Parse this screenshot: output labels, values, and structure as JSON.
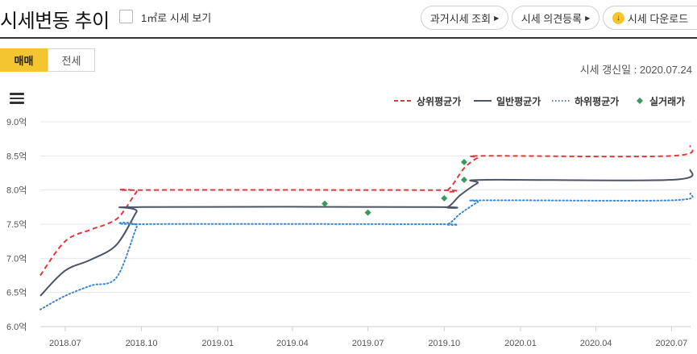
{
  "header": {
    "title": "시세변동 추이",
    "checkbox_label": "1㎡로 시세 보기",
    "btn_past": "과거시세 조회",
    "btn_opinion": "시세 의견등록",
    "btn_download": "시세 다운로드",
    "caret": "▶",
    "download_glyph": "↓",
    "download_icon_color": "#f5c531"
  },
  "tabs": {
    "sale": "매매",
    "jeonse": "전세",
    "active_color": "#f5c531"
  },
  "update_date": "시세 갱신일 : 2020.07.24",
  "chart_data": {
    "type": "line",
    "xlabel": "",
    "ylabel": "",
    "x_ticks": [
      "2018.07",
      "2018.10",
      "2019.01",
      "2019.04",
      "2019.07",
      "2019.10",
      "2020.01",
      "2020.04",
      "2020.07"
    ],
    "y_ticks": [
      "9.0억",
      "8.5억",
      "8.0억",
      "7.5억",
      "7.0억",
      "6.5억",
      "6.0억"
    ],
    "xlim": [
      "2018-06-01",
      "2020-07-24"
    ],
    "ylim": [
      6.0,
      9.0
    ],
    "y_unit": "억",
    "grid": true,
    "legend_position": "top-right",
    "series": [
      {
        "name": "상위평균가",
        "style": "dashed",
        "color": "#e03a3e",
        "points": [
          [
            "2018-06-01",
            6.75
          ],
          [
            "2018-07-01",
            7.25
          ],
          [
            "2018-08-01",
            7.42
          ],
          [
            "2018-08-20",
            7.5
          ],
          [
            "2018-09-05",
            7.62
          ],
          [
            "2018-09-25",
            7.97
          ],
          [
            "2018-10-01",
            8.0
          ],
          [
            "2019-09-15",
            8.0
          ],
          [
            "2019-10-05",
            8.0
          ],
          [
            "2019-10-25",
            8.32
          ],
          [
            "2019-11-10",
            8.47
          ],
          [
            "2019-11-20",
            8.5
          ],
          [
            "2020-07-01",
            8.5
          ],
          [
            "2020-07-24",
            8.65
          ]
        ]
      },
      {
        "name": "일반평균가",
        "style": "solid",
        "color": "#4c5566",
        "points": [
          [
            "2018-06-01",
            6.45
          ],
          [
            "2018-07-01",
            6.82
          ],
          [
            "2018-08-01",
            6.98
          ],
          [
            "2018-09-01",
            7.2
          ],
          [
            "2018-09-25",
            7.68
          ],
          [
            "2018-10-01",
            7.75
          ],
          [
            "2019-09-15",
            7.75
          ],
          [
            "2019-10-05",
            7.75
          ],
          [
            "2019-10-20",
            7.92
          ],
          [
            "2019-11-10",
            8.1
          ],
          [
            "2019-11-20",
            8.15
          ],
          [
            "2020-07-01",
            8.15
          ],
          [
            "2020-07-24",
            8.3
          ]
        ]
      },
      {
        "name": "하위평균가",
        "style": "dotted",
        "color": "#3b87d2",
        "points": [
          [
            "2018-06-01",
            6.25
          ],
          [
            "2018-07-01",
            6.45
          ],
          [
            "2018-08-01",
            6.6
          ],
          [
            "2018-09-01",
            6.72
          ],
          [
            "2018-09-25",
            7.45
          ],
          [
            "2018-10-01",
            7.5
          ],
          [
            "2019-09-15",
            7.5
          ],
          [
            "2019-10-05",
            7.5
          ],
          [
            "2019-10-20",
            7.65
          ],
          [
            "2019-11-10",
            7.82
          ],
          [
            "2019-11-20",
            7.85
          ],
          [
            "2020-07-01",
            7.85
          ],
          [
            "2020-07-24",
            7.95
          ]
        ]
      }
    ],
    "actual_trades": {
      "name": "실거래가",
      "color": "#3a9a5a",
      "points": [
        [
          "2019-05-10",
          7.8
        ],
        [
          "2019-07-01",
          7.67
        ],
        [
          "2019-10-01",
          7.88
        ],
        [
          "2019-10-25",
          8.15
        ],
        [
          "2019-10-25",
          8.41
        ]
      ]
    }
  }
}
